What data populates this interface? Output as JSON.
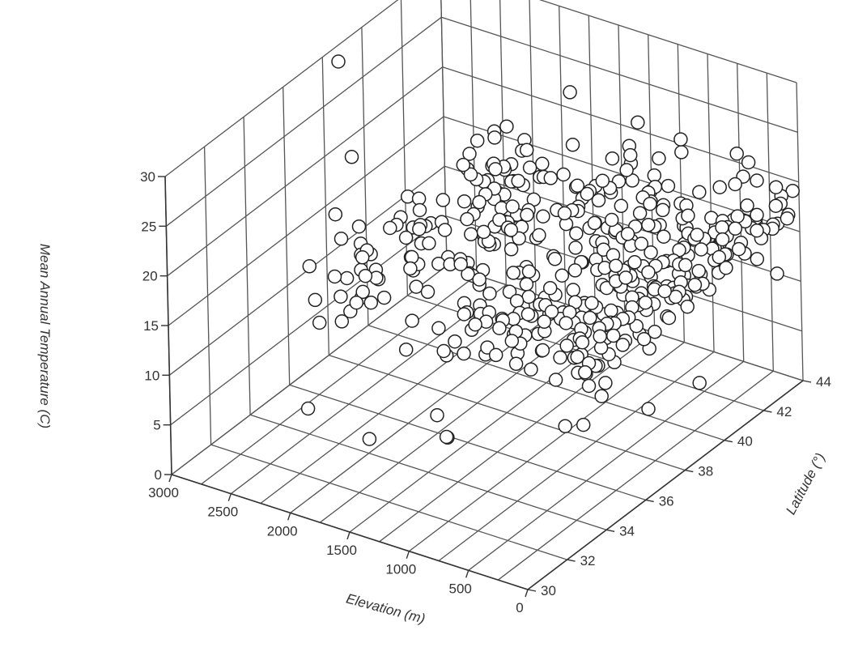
{
  "chart_data": {
    "type": "scatter",
    "subtype": "3d-scatter",
    "title": "",
    "xlabel": "Elevation (m)",
    "ylabel": "Latitude (°)",
    "zlabel": "Mean Annual Temperature (C)",
    "xlim": [
      0,
      3000
    ],
    "ylim": [
      30,
      44
    ],
    "zlim": [
      0,
      30
    ],
    "x_ticks": [
      "3000",
      "2500",
      "2000",
      "1500",
      "1000",
      "500",
      "0"
    ],
    "y_ticks": [
      "30",
      "32",
      "34",
      "36",
      "38",
      "40",
      "42",
      "44"
    ],
    "z_ticks": [
      "0",
      "5",
      "10",
      "15",
      "20",
      "25",
      "30"
    ],
    "grid": true,
    "legend": "none",
    "marker": "open-circle",
    "point_count": 460,
    "points": [
      {
        "x": 2950,
        "y": 38.5,
        "z": 29
      },
      {
        "x": 2600,
        "y": 37.0,
        "z": 23
      },
      {
        "x": 1450,
        "y": 38.0,
        "z": 29
      },
      {
        "x": 1500,
        "y": 41.5,
        "z": 27
      },
      {
        "x": 400,
        "y": 40.5,
        "z": 28
      },
      {
        "x": 1100,
        "y": 42.5,
        "z": 24
      },
      {
        "x": 200,
        "y": 42.0,
        "z": 22
      },
      {
        "x": 350,
        "y": 43.0,
        "z": 23
      },
      {
        "x": 100,
        "y": 42.5,
        "z": 22
      },
      {
        "x": 1700,
        "y": 34.5,
        "z": 19
      },
      {
        "x": 1500,
        "y": 38.5,
        "z": 20
      },
      {
        "x": 1200,
        "y": 40.0,
        "z": 21
      },
      {
        "x": 150,
        "y": 44.0,
        "z": 18
      },
      {
        "x": 20,
        "y": 43.5,
        "z": 17
      },
      {
        "x": 1400,
        "y": 30.5,
        "z": 9
      },
      {
        "x": 1000,
        "y": 32.0,
        "z": 8.5
      },
      {
        "x": 500,
        "y": 35.0,
        "z": 7
      },
      {
        "x": 300,
        "y": 38.0,
        "z": 5
      },
      {
        "x": 600,
        "y": 36.5,
        "z": 4.5
      },
      {
        "x": 200,
        "y": 40.0,
        "z": 5
      },
      {
        "x": 450,
        "y": 39.0,
        "z": 9
      },
      {
        "x": 200,
        "y": 44.0,
        "z": 10
      },
      {
        "x": 1500,
        "y": 35.0,
        "z": 2
      },
      {
        "x": 2000,
        "y": 31.0,
        "z": 9
      },
      {
        "x": 1500,
        "y": 34.5,
        "z": 5
      },
      {
        "x": 700,
        "y": 40.0,
        "z": 8
      }
    ]
  }
}
